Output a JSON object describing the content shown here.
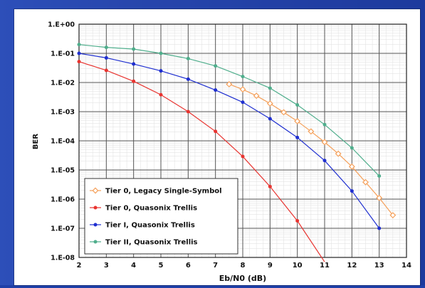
{
  "chart_data": {
    "type": "line",
    "xlabel": "Eb/N0 (dB)",
    "ylabel": "BER",
    "xlim": [
      2,
      14
    ],
    "ylim": [
      1e-08,
      1
    ],
    "y_scale": "log",
    "grid": true,
    "legend_position": "bottom-left",
    "x_ticks": [
      "2",
      "3",
      "4",
      "5",
      "6",
      "7",
      "8",
      "9",
      "10",
      "11",
      "12",
      "13",
      "14"
    ],
    "y_ticks": [
      "1.E+00",
      "1.E-01",
      "1.E-02",
      "1.E-03",
      "1.E-04",
      "1.E-05",
      "1.E-06",
      "1.E-07",
      "1.E-08"
    ],
    "series": [
      {
        "name": "Tier 0, Legacy Single-Symbol",
        "color": "#f5a05a",
        "marker": "open-diamond",
        "x": [
          7.5,
          8,
          8.5,
          9,
          9.5,
          10,
          10.5,
          11,
          11.5,
          12,
          12.5,
          13,
          13.5
        ],
        "y": [
          0.0087,
          0.0058,
          0.0035,
          0.0019,
          0.00095,
          0.00047,
          0.00021,
          9e-05,
          3.6e-05,
          1.3e-05,
          3.8e-06,
          1.1e-06,
          2.8e-07
        ]
      },
      {
        "name": "Tier 0, Quasonix Trellis",
        "color": "#e8332f",
        "marker": "dot",
        "x": [
          2,
          3,
          4,
          5,
          6,
          7,
          8,
          9,
          10,
          11
        ],
        "y": [
          0.052,
          0.026,
          0.011,
          0.0038,
          0.001,
          0.00021,
          2.9e-05,
          2.7e-06,
          1.8e-07,
          7e-09
        ]
      },
      {
        "name": "Tier I, Quasonix Trellis",
        "color": "#1f2fd0",
        "marker": "dot",
        "x": [
          2,
          3,
          4,
          5,
          6,
          7,
          8,
          9,
          10,
          11,
          12,
          13
        ],
        "y": [
          0.1,
          0.07,
          0.043,
          0.025,
          0.013,
          0.0055,
          0.0021,
          0.00057,
          0.00013,
          2.1e-05,
          1.9e-06,
          1e-07
        ]
      },
      {
        "name": "Tier II, Quasonix Trellis",
        "color": "#4fae8c",
        "marker": "dot",
        "x": [
          2,
          3,
          4,
          5,
          6,
          7,
          8,
          9,
          10,
          11,
          12,
          13
        ],
        "y": [
          0.2,
          0.16,
          0.14,
          0.1,
          0.066,
          0.037,
          0.016,
          0.0064,
          0.0017,
          0.00036,
          5.7e-05,
          6.2e-06
        ]
      }
    ]
  }
}
